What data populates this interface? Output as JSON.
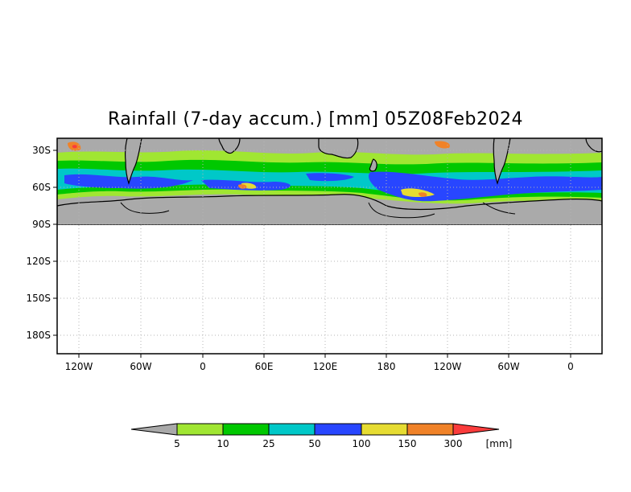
{
  "title": "Rainfall (7-day accum.) [mm] 05Z08Feb2024",
  "map": {
    "lat_labels": [
      "30S",
      "60S",
      "90S",
      "120S",
      "150S",
      "180S"
    ],
    "lon_labels": [
      "120W",
      "60W",
      "0",
      "60E",
      "120E",
      "180",
      "120W",
      "60W",
      "0"
    ]
  },
  "colorbar": {
    "unit_label": "[mm]",
    "thresholds": [
      "5",
      "10",
      "25",
      "50",
      "100",
      "150",
      "300"
    ],
    "colors": [
      "#a9a9a9",
      "#a0e632",
      "#00c800",
      "#00c8c8",
      "#2846ff",
      "#e6dc32",
      "#f08228",
      "#fa3c3c"
    ]
  },
  "colors": {
    "no_rain": "#aaaaaa",
    "light": "#a0e632",
    "green": "#00c800",
    "cyan": "#00c8c8",
    "blue": "#2846ff",
    "yellow": "#e6dc32",
    "orange": "#f08228",
    "red": "#fa3c3c"
  }
}
